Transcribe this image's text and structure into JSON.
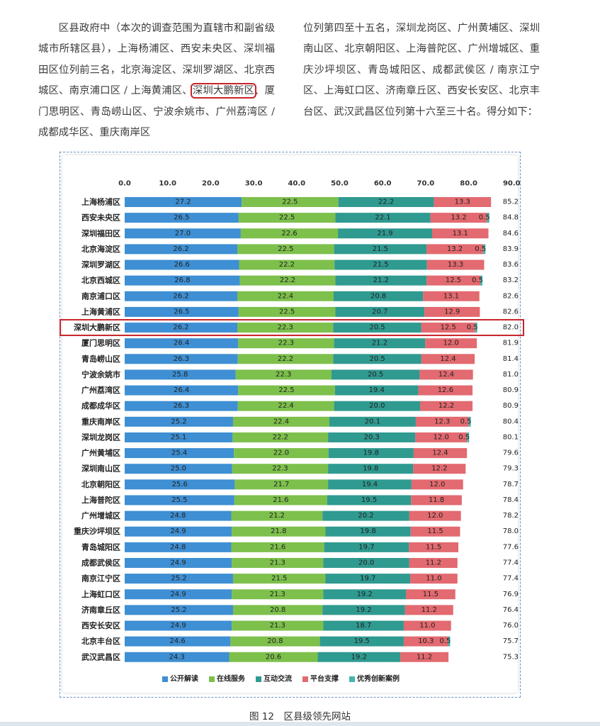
{
  "text": {
    "left_before": "区县政府中（本次的调查范围为直辖市和副省级城市所辖区县），上海杨浦区、西安未央区、深圳福田区位列前三名，北京海淀区、深圳罗湖区、北京西城区、南京浦口区 / 上海黄浦区、",
    "left_highlight": "深圳大鹏新区",
    "left_after": "、厦门思明区、青岛崂山区、宁波余姚市、广州荔湾区 / 成都成华区、重庆南岸区",
    "right": "位列第四至十五名，深圳龙岗区、广州黄埔区、深圳南山区、北京朝阳区、上海普陀区、广州增城区、重庆沙坪坝区、青岛城阳区、成都武侯区 / 南京江宁区、上海虹口区、济南章丘区、西安长安区、北京丰台区、武汉武昌区位列第十六至三十名。得分如下："
  },
  "caption": "图 12　区县级领先网站",
  "colors": {
    "公开解读": "#3e8fd3",
    "在线服务": "#7dc04c",
    "互动交流": "#2f9a90",
    "平台支撑": "#e26a70",
    "优秀创新案例": "#44b5ad",
    "highlight_border": "#c8242b"
  },
  "chart_data": {
    "type": "bar",
    "orientation": "horizontal",
    "stacked": true,
    "title": "区县级领先网站",
    "axis_ticks": [
      "0.0",
      "10.0",
      "20.0",
      "30.0",
      "40.0",
      "50.0",
      "60.0",
      "70.0",
      "80.0",
      "90.0"
    ],
    "xlim": [
      0,
      90
    ],
    "axis_position": "top",
    "legend_position": "bottom",
    "highlight_category": "深圳大鹏新区",
    "categories": [
      "上海杨浦区",
      "西安未央区",
      "深圳福田区",
      "北京海淀区",
      "深圳罗湖区",
      "北京西城区",
      "南京浦口区",
      "上海黄浦区",
      "深圳大鹏新区",
      "厦门思明区",
      "青岛崂山区",
      "宁波余姚市",
      "广州荔湾区",
      "成都成华区",
      "重庆南岸区",
      "深圳龙岗区",
      "广州黄埔区",
      "深圳南山区",
      "北京朝阳区",
      "上海普陀区",
      "广州增城区",
      "重庆沙坪坝区",
      "青岛城阳区",
      "成都武侯区",
      "南京江宁区",
      "上海虹口区",
      "济南章丘区",
      "西安长安区",
      "北京丰台区",
      "武汉武昌区"
    ],
    "series": [
      {
        "name": "公开解读",
        "values": [
          27.2,
          26.5,
          27.0,
          26.2,
          26.6,
          26.8,
          26.2,
          26.5,
          26.2,
          26.4,
          26.3,
          25.8,
          26.4,
          26.3,
          25.2,
          25.1,
          25.4,
          25.0,
          25.6,
          25.5,
          24.8,
          24.9,
          24.8,
          24.9,
          25.2,
          24.9,
          25.2,
          24.9,
          24.6,
          24.3
        ]
      },
      {
        "name": "在线服务",
        "values": [
          22.5,
          22.5,
          22.6,
          22.5,
          22.2,
          22.2,
          22.4,
          22.5,
          22.3,
          22.3,
          22.2,
          22.3,
          22.5,
          22.4,
          22.4,
          22.2,
          22.0,
          22.3,
          21.7,
          21.6,
          21.2,
          21.8,
          21.6,
          21.3,
          21.5,
          21.3,
          20.8,
          21.3,
          20.8,
          20.6
        ]
      },
      {
        "name": "互动交流",
        "values": [
          22.2,
          22.1,
          21.9,
          21.5,
          21.5,
          21.2,
          20.8,
          20.7,
          20.5,
          21.2,
          20.5,
          20.5,
          19.4,
          20.0,
          20.1,
          20.3,
          19.8,
          19.8,
          19.4,
          19.5,
          20.2,
          19.8,
          19.7,
          20.0,
          19.7,
          19.2,
          19.2,
          18.7,
          19.5,
          19.2
        ]
      },
      {
        "name": "平台支撑",
        "values": [
          13.3,
          13.2,
          13.1,
          13.2,
          13.3,
          12.5,
          13.1,
          12.9,
          12.5,
          12.0,
          12.4,
          12.4,
          12.6,
          12.2,
          12.3,
          12.0,
          12.4,
          12.2,
          12.0,
          11.8,
          12.0,
          11.5,
          11.5,
          11.2,
          11.0,
          11.5,
          11.2,
          11.0,
          10.3,
          11.2
        ]
      },
      {
        "name": "优秀创新案例",
        "values": [
          0,
          0.5,
          0,
          0.5,
          0,
          0.5,
          0,
          0,
          0.5,
          0,
          0,
          0,
          0,
          0,
          0.5,
          0.5,
          0,
          0,
          0,
          0,
          0,
          0,
          0,
          0,
          0,
          0,
          0,
          0,
          0.5,
          0
        ]
      }
    ],
    "totals": [
      85.2,
      84.8,
      84.6,
      83.9,
      83.6,
      83.2,
      82.6,
      82.6,
      82.0,
      81.9,
      81.4,
      81.0,
      80.9,
      80.9,
      80.4,
      80.1,
      79.6,
      79.3,
      78.7,
      78.4,
      78.2,
      78.0,
      77.6,
      77.4,
      77.4,
      76.9,
      76.4,
      76.0,
      75.7,
      75.3
    ],
    "legend": [
      "公开解读",
      "在线服务",
      "互动交流",
      "平台支撑",
      "优秀创新案例"
    ]
  }
}
